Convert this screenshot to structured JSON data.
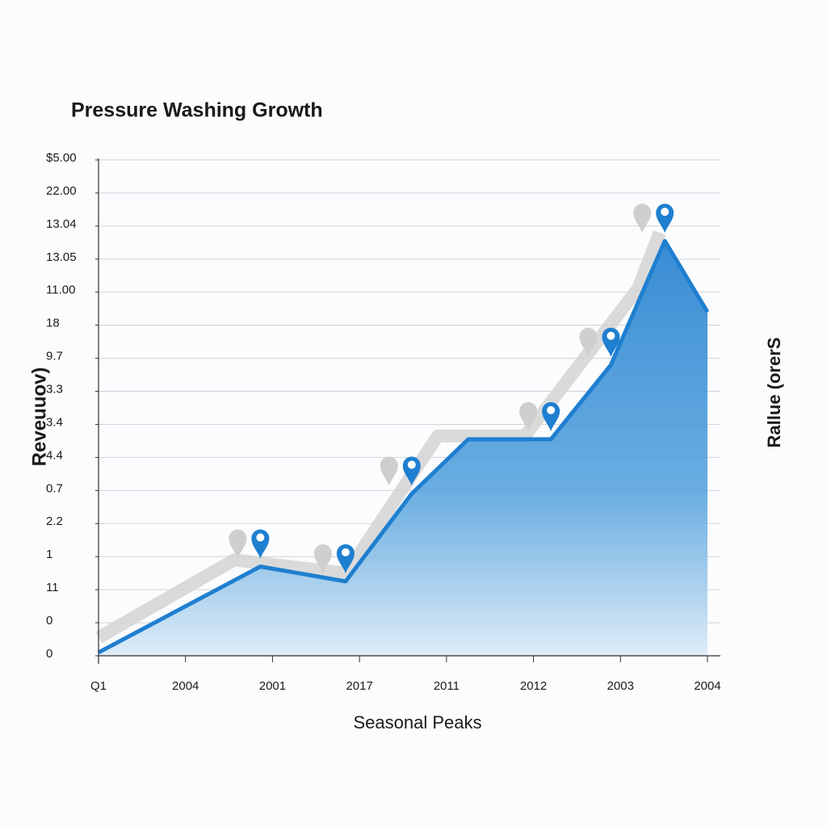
{
  "chart_data": {
    "type": "area",
    "title": "Pressure Washing Growth",
    "x_label": "Seasonal Peaks",
    "y_label": "Reveuuov)",
    "y2_label": "Rallue (orerS",
    "xlim": [
      0,
      7
    ],
    "xticks": [
      {
        "value": 0,
        "label": "Q1"
      },
      {
        "value": 1,
        "label": "2004"
      },
      {
        "value": 2,
        "label": "2001"
      },
      {
        "value": 3,
        "label": "2017"
      },
      {
        "value": 4,
        "label": "2011"
      },
      {
        "value": 5,
        "label": "2012"
      },
      {
        "value": 6,
        "label": "2003"
      },
      {
        "value": 7,
        "label": "2004"
      }
    ],
    "ylim": [
      0,
      15
    ],
    "yticks": [
      {
        "value": 0,
        "label": "0"
      },
      {
        "value": 1,
        "label": "0"
      },
      {
        "value": 2,
        "label": "11"
      },
      {
        "value": 3,
        "label": "1"
      },
      {
        "value": 4,
        "label": "2.2"
      },
      {
        "value": 5,
        "label": "0.7"
      },
      {
        "value": 6,
        "label": "4.4"
      },
      {
        "value": 7,
        "label": "3.4"
      },
      {
        "value": 8,
        "label": "3.3"
      },
      {
        "value": 9,
        "label": "9.7"
      },
      {
        "value": 10,
        "label": "18"
      },
      {
        "value": 11,
        "label": "11.00"
      },
      {
        "value": 12,
        "label": "13.05"
      },
      {
        "value": 13,
        "label": "13.04"
      },
      {
        "value": 14,
        "label": "22.00"
      },
      {
        "value": 15,
        "label": "$5.00"
      }
    ],
    "grid": true,
    "series": [
      {
        "color": "#d4d4d4",
        "x": [
          0,
          1.56,
          2.85,
          3.9,
          4.9,
          6.2,
          6.45
        ],
        "values": [
          0.55,
          2.9,
          2.5,
          6.65,
          6.65,
          11.1,
          12.8
        ]
      },
      {
        "color": "#1f7fd0",
        "x": [
          0,
          1.86,
          2.84,
          3.6,
          4.25,
          5.2,
          5.89,
          6.51,
          7
        ],
        "values": [
          0.1,
          2.7,
          2.25,
          4.9,
          6.55,
          6.55,
          8.8,
          12.55,
          10.4
        ]
      }
    ]
  }
}
